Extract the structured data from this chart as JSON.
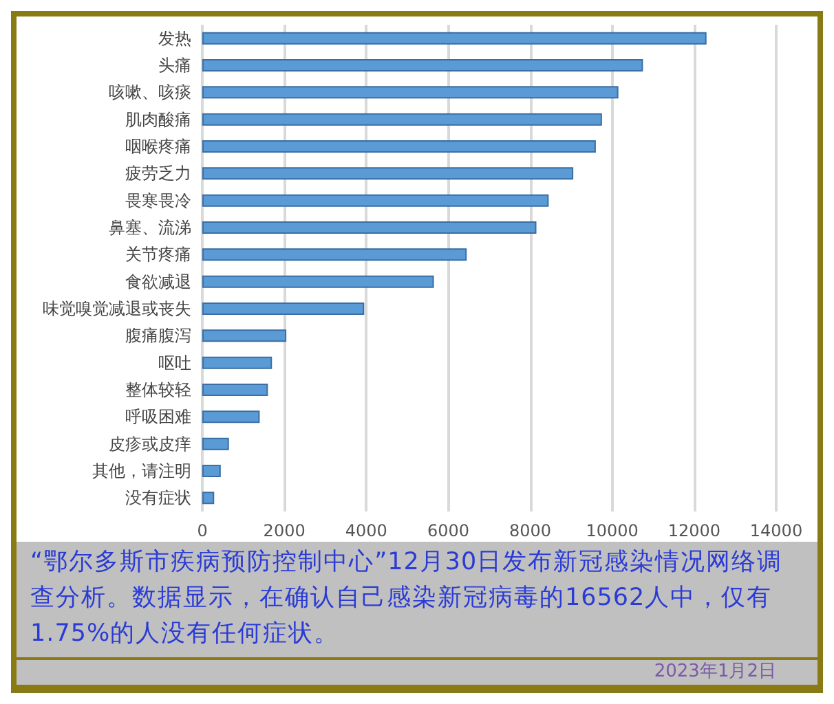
{
  "chart_data": {
    "type": "bar",
    "orientation": "horizontal",
    "categories": [
      "发热",
      "头痛",
      "咳嗽、咳痰",
      "肌肉酸痛",
      "咽喉疼痛",
      "疲劳乏力",
      "畏寒畏冷",
      "鼻塞、流涕",
      "关节疼痛",
      "食欲减退",
      "味觉嗅觉减退或丧失",
      "腹痛腹泻",
      "呕吐",
      "整体较轻",
      "呼吸困难",
      "皮疹或皮痒",
      "其他，请注明",
      "没有症状"
    ],
    "values": [
      12300,
      10750,
      10150,
      9750,
      9600,
      9050,
      8450,
      8150,
      6450,
      5650,
      3950,
      2050,
      1700,
      1600,
      1400,
      650,
      450,
      290
    ],
    "color": "#5b9bd5",
    "xlim": [
      0,
      14000
    ],
    "xticks": [
      0,
      2000,
      4000,
      6000,
      8000,
      10000,
      12000,
      14000
    ],
    "grid": "x",
    "annotations": [
      "“鄂尔多斯市疾病预防控制中心”12月30日发布新冠感染情况网络调查分析。数据显示，在确认自己感染新冠病毒的16562人中，仅有1.75%的人没有任何症状。",
      "2023年1月2日"
    ]
  }
}
